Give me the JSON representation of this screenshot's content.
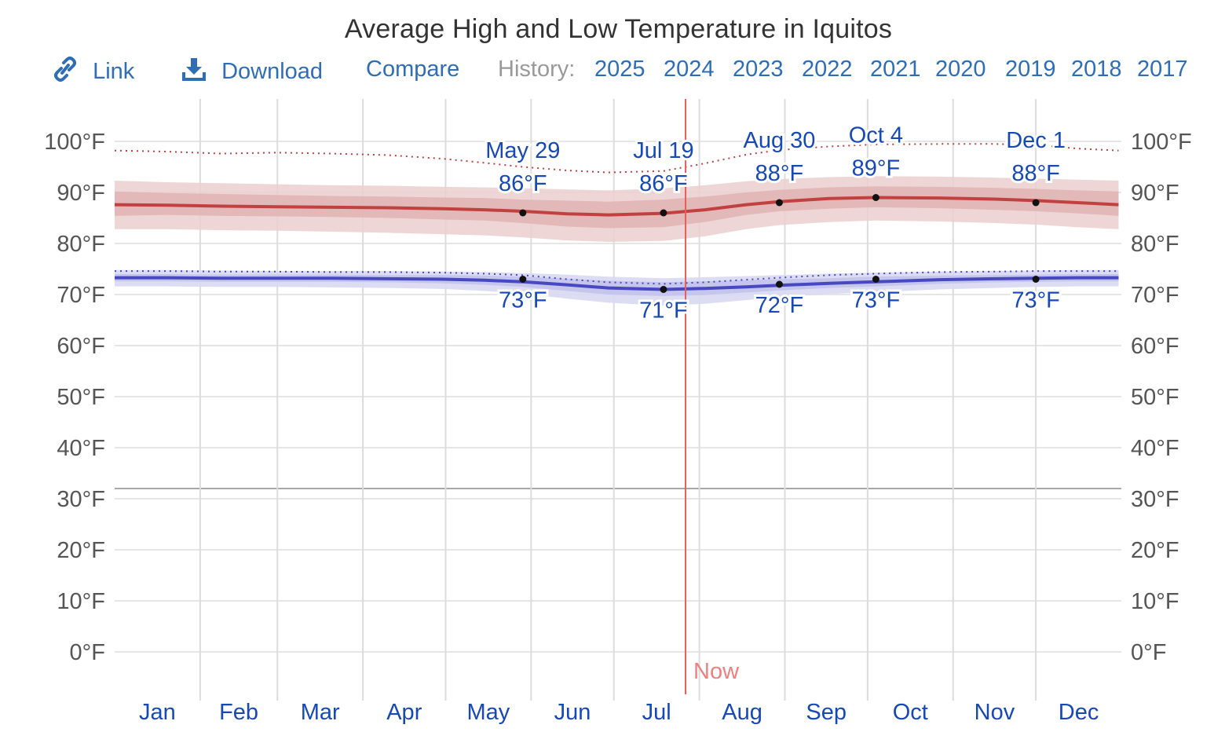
{
  "title": "Average High and Low Temperature in Iquitos",
  "toolbar": {
    "link_label": "Link",
    "download_label": "Download",
    "compare_label": "Compare",
    "history_label": "History:",
    "years": [
      "2025",
      "2024",
      "2023",
      "2022",
      "2021",
      "2020",
      "2019",
      "2018",
      "2017"
    ]
  },
  "colors": {
    "high": "#c0413f",
    "low": "#4848c0",
    "now": "#e06060",
    "link": "#2f6db5",
    "annotation": "#1749b5"
  },
  "now_label": "Now",
  "chart_data": {
    "type": "line",
    "title": "Average High and Low Temperature in Iquitos",
    "x_unit": "day_of_year",
    "months": [
      "Jan",
      "Feb",
      "Mar",
      "Apr",
      "May",
      "Jun",
      "Jul",
      "Aug",
      "Sep",
      "Oct",
      "Nov",
      "Dec"
    ],
    "ylim": [
      -10,
      110
    ],
    "yticks": [
      0,
      10,
      20,
      30,
      40,
      50,
      60,
      70,
      80,
      90,
      100
    ],
    "ytick_labels": [
      "0°F",
      "10°F",
      "20°F",
      "30°F",
      "40°F",
      "50°F",
      "60°F",
      "70°F",
      "80°F",
      "90°F",
      "100°F"
    ],
    "freezing_line": 32,
    "now_day": 208,
    "series": [
      {
        "name": "Average High",
        "x": [
          1,
          20,
          40,
          60,
          80,
          100,
          120,
          135,
          149,
          165,
          180,
          200,
          215,
          230,
          242,
          260,
          277,
          300,
          320,
          335,
          350,
          365
        ],
        "values": [
          87.6,
          87.5,
          87.3,
          87.2,
          87.1,
          87.0,
          86.8,
          86.6,
          86.3,
          85.8,
          85.6,
          85.9,
          86.6,
          87.6,
          88.2,
          88.8,
          89.0,
          88.9,
          88.7,
          88.4,
          88.0,
          87.6
        ],
        "band_25_75": [
          [
            85.4,
            90.2
          ],
          [
            85.6,
            89.9
          ],
          [
            85.4,
            89.7
          ],
          [
            85.3,
            89.5
          ],
          [
            85.2,
            89.3
          ],
          [
            85.0,
            89.2
          ],
          [
            84.7,
            89.0
          ],
          [
            84.5,
            88.9
          ],
          [
            84.0,
            88.6
          ],
          [
            83.3,
            88.4
          ],
          [
            83.0,
            88.2
          ],
          [
            83.2,
            88.6
          ],
          [
            84.2,
            89.2
          ],
          [
            85.6,
            90.0
          ],
          [
            86.3,
            90.5
          ],
          [
            86.8,
            91.0
          ],
          [
            87.1,
            91.2
          ],
          [
            86.9,
            91.1
          ],
          [
            86.6,
            90.9
          ],
          [
            86.3,
            90.7
          ],
          [
            85.9,
            90.4
          ],
          [
            85.4,
            90.2
          ]
        ],
        "band_10_90": [
          [
            82.8,
            92.3
          ],
          [
            82.8,
            92.0
          ],
          [
            82.6,
            91.8
          ],
          [
            82.5,
            91.6
          ],
          [
            82.3,
            91.4
          ],
          [
            82.1,
            91.3
          ],
          [
            81.8,
            91.1
          ],
          [
            81.6,
            91.0
          ],
          [
            81.2,
            90.8
          ],
          [
            80.6,
            90.6
          ],
          [
            80.3,
            90.4
          ],
          [
            80.5,
            90.8
          ],
          [
            81.4,
            91.4
          ],
          [
            82.8,
            92.2
          ],
          [
            83.6,
            92.6
          ],
          [
            84.2,
            93.0
          ],
          [
            84.5,
            93.2
          ],
          [
            84.3,
            93.1
          ],
          [
            84.0,
            92.9
          ],
          [
            83.7,
            92.7
          ],
          [
            83.2,
            92.5
          ],
          [
            82.8,
            92.3
          ]
        ],
        "record": [
          98.2,
          98.0,
          97.6,
          97.8,
          97.6,
          97.3,
          96.6,
          95.8,
          95.0,
          94.3,
          93.9,
          94.2,
          95.7,
          97.4,
          98.3,
          99.0,
          99.4,
          99.5,
          99.5,
          99.3,
          98.6,
          98.2
        ]
      },
      {
        "name": "Average Low",
        "x": [
          1,
          20,
          40,
          60,
          80,
          100,
          120,
          135,
          149,
          165,
          180,
          200,
          215,
          230,
          242,
          260,
          277,
          300,
          320,
          335,
          350,
          365
        ],
        "values": [
          73.3,
          73.3,
          73.2,
          73.2,
          73.2,
          73.1,
          73.0,
          72.8,
          72.5,
          71.9,
          71.3,
          71.0,
          71.2,
          71.5,
          71.8,
          72.2,
          72.5,
          72.9,
          73.1,
          73.2,
          73.3,
          73.3
        ],
        "band_25_75": [
          [
            72.6,
            74.0
          ],
          [
            72.6,
            74.0
          ],
          [
            72.5,
            73.9
          ],
          [
            72.5,
            73.9
          ],
          [
            72.5,
            73.9
          ],
          [
            72.4,
            73.8
          ],
          [
            72.2,
            73.8
          ],
          [
            71.9,
            73.7
          ],
          [
            71.5,
            73.5
          ],
          [
            70.7,
            73.1
          ],
          [
            70.0,
            72.7
          ],
          [
            69.7,
            72.4
          ],
          [
            69.9,
            72.6
          ],
          [
            70.4,
            72.8
          ],
          [
            70.8,
            73.0
          ],
          [
            71.3,
            73.2
          ],
          [
            71.6,
            73.5
          ],
          [
            72.1,
            73.7
          ],
          [
            72.4,
            73.8
          ],
          [
            72.5,
            73.9
          ],
          [
            72.6,
            74.0
          ],
          [
            72.6,
            74.0
          ]
        ],
        "band_10_90": [
          [
            71.6,
            74.8
          ],
          [
            71.6,
            74.8
          ],
          [
            71.5,
            74.7
          ],
          [
            71.5,
            74.6
          ],
          [
            71.4,
            74.6
          ],
          [
            71.3,
            74.6
          ],
          [
            71.1,
            74.5
          ],
          [
            70.7,
            74.4
          ],
          [
            70.2,
            74.2
          ],
          [
            69.2,
            73.9
          ],
          [
            68.4,
            73.5
          ],
          [
            67.8,
            73.2
          ],
          [
            68.2,
            73.4
          ],
          [
            68.9,
            73.6
          ],
          [
            69.5,
            73.8
          ],
          [
            70.1,
            74.1
          ],
          [
            70.5,
            74.3
          ],
          [
            71.0,
            74.5
          ],
          [
            71.3,
            74.6
          ],
          [
            71.5,
            74.7
          ],
          [
            71.6,
            74.8
          ],
          [
            71.6,
            74.8
          ]
        ],
        "record": [
          74.6,
          74.6,
          74.5,
          74.5,
          74.4,
          74.4,
          74.3,
          74.1,
          73.8,
          73.0,
          72.4,
          72.1,
          72.4,
          72.9,
          73.3,
          73.8,
          74.1,
          74.4,
          74.5,
          74.6,
          74.6,
          74.6
        ]
      }
    ],
    "annotations": [
      {
        "date": "May 29",
        "day": 149,
        "high": 86,
        "high_label": "86°F",
        "low": 73,
        "low_label": "73°F"
      },
      {
        "date": "Jul 19",
        "day": 200,
        "high": 86,
        "high_label": "86°F",
        "low": 71,
        "low_label": "71°F"
      },
      {
        "date": "Aug 30",
        "day": 242,
        "high": 88,
        "high_label": "88°F",
        "low": 72,
        "low_label": "72°F"
      },
      {
        "date": "Oct 4",
        "day": 277,
        "high": 89,
        "high_label": "89°F",
        "low": 73,
        "low_label": "73°F"
      },
      {
        "date": "Dec 1",
        "day": 335,
        "high": 88,
        "high_label": "88°F",
        "low": 73,
        "low_label": "73°F"
      }
    ]
  }
}
